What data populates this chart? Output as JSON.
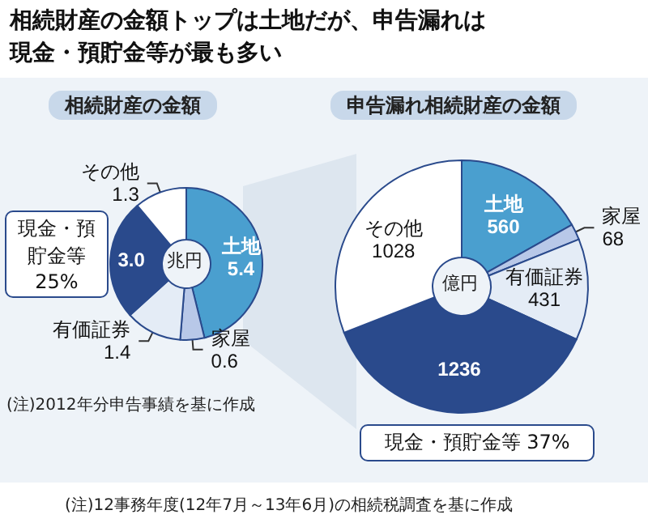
{
  "chart_data": [
    {
      "type": "donut",
      "title": "相続財産の金額トップは土地だが、申告漏れは現金・預貯金等が最も多い",
      "subtitle": "相続財産の金額",
      "categories": [
        "土地",
        "家屋",
        "有価証券",
        "現金・預貯金等",
        "その他"
      ],
      "values": [
        5.4,
        0.6,
        1.4,
        3.0,
        1.3
      ],
      "value_labels": [
        "5.4",
        "0.6",
        "1.4",
        "3.0",
        "1.3"
      ],
      "colors": [
        "#4a9fcf",
        "#b8c8e8",
        "#e4ecf6",
        "#2a4a8c",
        "#ffffff"
      ],
      "annotations": [
        "兆円",
        {
          "text": "25%",
          "x": "現金・預貯金等"
        },
        "(注)2012年分申告事績を基に作成"
      ]
    },
    {
      "type": "donut",
      "title": "申告漏れ相続財産の金額",
      "categories": [
        "土地",
        "家屋",
        "有価証券",
        "現金・預貯金等",
        "その他"
      ],
      "values": [
        560,
        68,
        431,
        1236,
        1028
      ],
      "value_labels": [
        "560",
        "68",
        "431",
        "1236",
        "1028"
      ],
      "colors": [
        "#4a9fcf",
        "#b8c8e8",
        "#e4ecf6",
        "#2a4a8c",
        "#ffffff"
      ],
      "annotations": [
        "億円",
        {
          "text": "37%",
          "x": "現金・預貯金等"
        },
        "(注)12事務年度(12年7月～13年6月)の相続税調査を基に作成"
      ]
    }
  ]
}
